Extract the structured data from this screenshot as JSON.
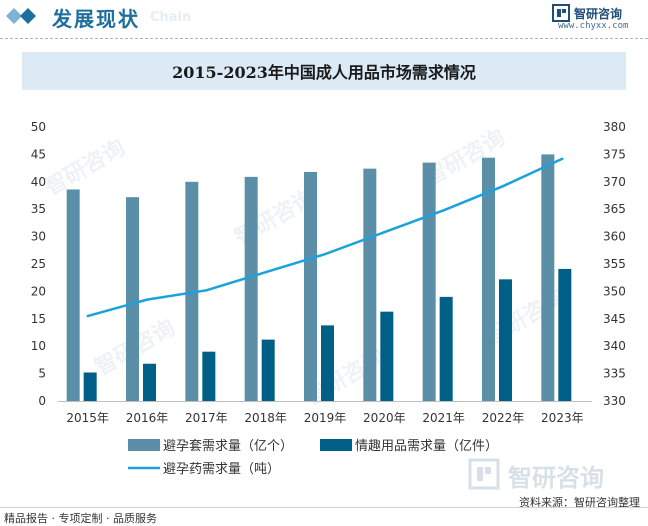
{
  "header": {
    "title": "发展现状",
    "ghost_text": "Chain",
    "brand": "智研咨询",
    "site": "www.chyxx.com"
  },
  "watermark": {
    "text": "智研咨询"
  },
  "footer": {
    "tagline": "精品报告 · 专项定制 · 品质服务",
    "source": "资料来源：智研咨询整理"
  },
  "colors": {
    "accent": "#1d6f9e",
    "title_bg": "#dbeaf5",
    "bar_condom": "#5b8fa8",
    "bar_adult": "#005f86",
    "line_pill": "#1ba1dc"
  },
  "chart_data": {
    "type": "bar",
    "title": "2015-2023年中国成人用品市场需求情况",
    "categories": [
      "2015年",
      "2016年",
      "2017年",
      "2018年",
      "2019年",
      "2020年",
      "2021年",
      "2022年",
      "2023年"
    ],
    "series": [
      {
        "name": "避孕套需求量（亿个）",
        "type": "bar",
        "axis": "left",
        "values": [
          38.6,
          37.2,
          40.0,
          40.9,
          41.8,
          42.4,
          43.5,
          44.4,
          45.0
        ]
      },
      {
        "name": "情趣用品需求量（亿件）",
        "type": "bar",
        "axis": "left",
        "values": [
          5.2,
          6.8,
          9.0,
          11.2,
          13.8,
          16.3,
          19.0,
          22.2,
          24.1
        ]
      },
      {
        "name": "避孕药需求量（吨）",
        "type": "line",
        "axis": "right",
        "values": [
          345.5,
          348.5,
          350.2,
          353.5,
          356.8,
          360.8,
          364.8,
          369.2,
          374.2
        ]
      }
    ],
    "ylim_left": [
      0,
      50
    ],
    "yticks_left": [
      "0",
      "5",
      "10",
      "15",
      "20",
      "25",
      "30",
      "35",
      "40",
      "45",
      "50"
    ],
    "ylim_right": [
      330,
      380
    ],
    "yticks_right": [
      "330",
      "335",
      "340",
      "345",
      "350",
      "355",
      "360",
      "365",
      "370",
      "375",
      "380"
    ],
    "grid": false,
    "legend_position": "bottom"
  }
}
